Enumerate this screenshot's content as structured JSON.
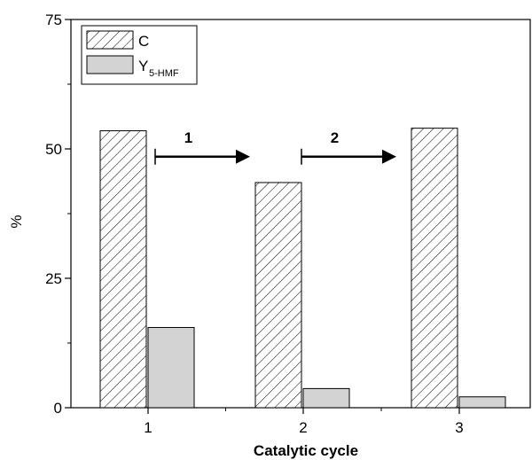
{
  "chart_data": {
    "type": "bar",
    "xlabel": "Catalytic cycle",
    "ylabel": "%",
    "ylim": [
      0,
      75
    ],
    "yticks": [
      0,
      25,
      50,
      75
    ],
    "categories": [
      "1",
      "2",
      "3"
    ],
    "series": [
      {
        "name": "C",
        "values": [
          53.5,
          43.5,
          54.0
        ],
        "fill": "hatched"
      },
      {
        "name": "Y",
        "name_subscript": "5-HMF",
        "values": [
          15.5,
          3.7,
          2.1
        ],
        "fill": "#d3d3d3"
      }
    ],
    "legend": "top-left",
    "grid": false,
    "annotations": [
      {
        "label": "1",
        "type": "arrow",
        "from_category": 1,
        "to_category": 2
      },
      {
        "label": "2",
        "type": "arrow",
        "from_category": 2,
        "to_category": 3
      }
    ]
  },
  "colors": {
    "bar_c_hatch": "#000000",
    "bar_y_fill": "#d3d3d3",
    "axis": "#000000"
  }
}
